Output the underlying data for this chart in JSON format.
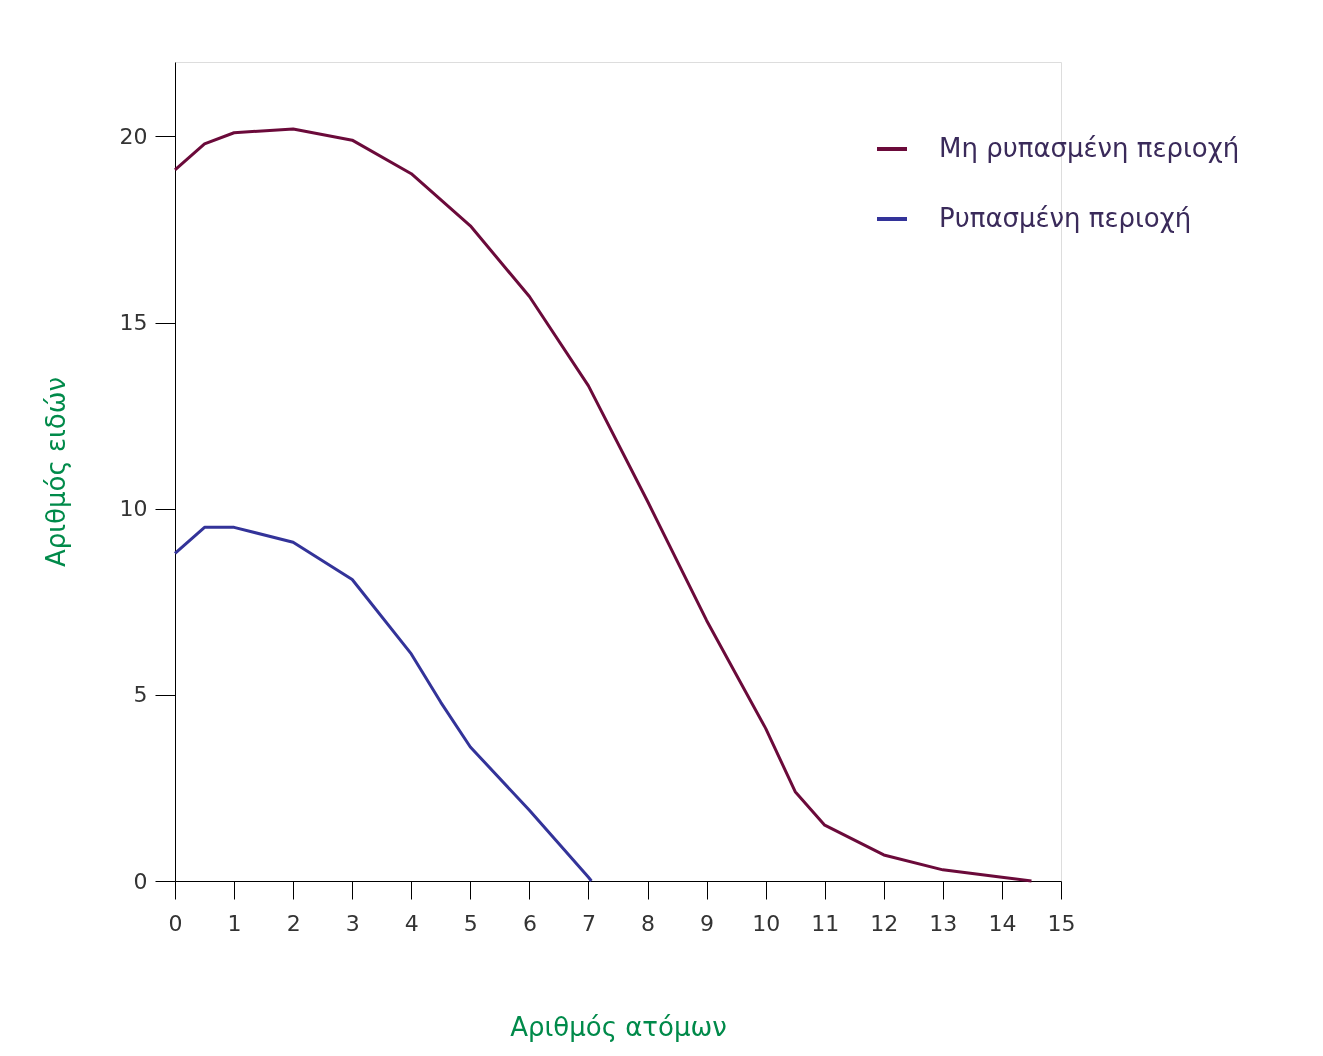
{
  "chart_data": {
    "type": "line",
    "xlabel": "Αριθμός ατόμων",
    "ylabel": "Αριθμός ειδών",
    "xlim": [
      0,
      15
    ],
    "ylim": [
      0,
      22
    ],
    "xticks": [
      0,
      1,
      2,
      3,
      4,
      5,
      6,
      7,
      8,
      9,
      10,
      11,
      12,
      13,
      14,
      15
    ],
    "yticks": [
      0,
      5,
      10,
      15,
      20
    ],
    "grid": false,
    "legend": "top right",
    "marker": "none",
    "line_style": "solid",
    "series": [
      {
        "name": "Μη ρυπασμένη περιοχή",
        "color": "#6b0a3a",
        "x": [
          0,
          0.5,
          1,
          2,
          3,
          4,
          5,
          6,
          7,
          8,
          9,
          10,
          10.5,
          11,
          12,
          13,
          14,
          14.5
        ],
        "values": [
          19.1,
          19.8,
          20.1,
          20.2,
          19.9,
          19.0,
          17.6,
          15.7,
          13.3,
          10.2,
          7.0,
          4.1,
          2.4,
          1.5,
          0.7,
          0.3,
          0.1,
          0
        ]
      },
      {
        "name": "Ρυπασμένη περιοχή",
        "color": "#333399",
        "x": [
          0,
          0.5,
          1,
          2,
          3,
          4,
          4.5,
          5,
          6,
          7,
          7.05
        ],
        "values": [
          8.8,
          9.5,
          9.5,
          9.1,
          8.1,
          6.1,
          4.8,
          3.6,
          1.9,
          0.1,
          0
        ]
      }
    ]
  }
}
